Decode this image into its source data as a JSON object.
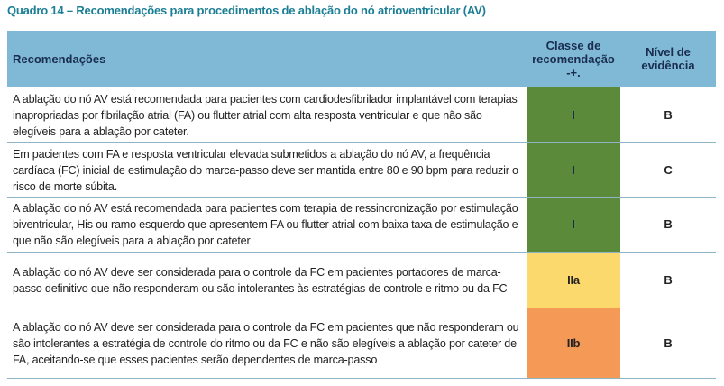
{
  "header": {
    "title": "Quadro 14 – Recomendações para procedimentos de ablação do nó atrioventricular (AV)"
  },
  "table": {
    "columns": [
      "Recomendações",
      "Classe de recomendação -+.",
      "Nível de evidência"
    ],
    "rows": [
      [
        "A ablação do nó AV está recomendada para pacientes com cardiodesfibrilador implantável com terapias inapropriadas por fibrilação atrial (FA) ou flutter atrial com alta resposta ventricular e que não são elegíveis para a ablação por cateter.",
        "I",
        "B"
      ],
      [
        "Em pacientes com FA e resposta ventricular elevada submetidos a ablação do nó AV, a frequência cardíaca (FC) inicial de estimulação do marca-passo deve ser mantida entre 80 e 90 bpm para reduzir o risco de morte súbita.",
        "I",
        "C"
      ],
      [
        "A ablação do nó AV está recomendada para pacientes com terapia de ressincronização por estimulação biventricular, His ou ramo esquerdo que apresentem FA ou flutter atrial com baixa taxa de estimulação e que não são elegíveis para a ablação por cateter",
        "I",
        "B"
      ],
      [
        "A ablação do nó AV deve ser considerada para o controle da FC em pacientes portadores de marca-passo definitivo que não responderam ou são intolerantes às estratégias de controle e ritmo ou da FC",
        "IIa",
        "B"
      ],
      [
        "A ablação do nó AV deve ser considerada para o controle da FC em pacientes que não responderam ou são intolerantes a estratégia de controle do ritmo ou da FC e não são elegíveis a ablação por cateter de FA, aceitando-se que esses pacientes serão dependentes de marca-passo",
        "IIb",
        "B"
      ]
    ]
  }
}
